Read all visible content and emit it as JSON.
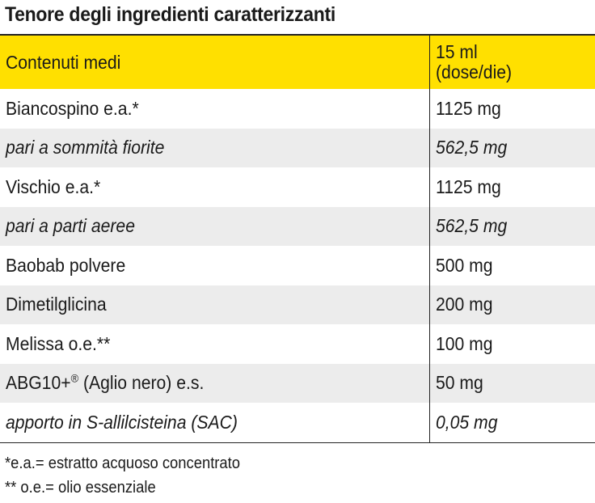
{
  "title": "Tenore degli ingredienti caratterizzanti",
  "header": {
    "col1": "Contenuti medi",
    "col2_line1": "15 ml",
    "col2_line2": "(dose/die)"
  },
  "rows": [
    {
      "name": "Biancospino e.a.*",
      "value": "1125 mg",
      "italic": false,
      "shaded": false
    },
    {
      "name": "pari a sommità fiorite",
      "value": "562,5 mg",
      "italic": true,
      "shaded": true
    },
    {
      "name": "Vischio e.a.*",
      "value": "1125 mg",
      "italic": false,
      "shaded": false
    },
    {
      "name": "pari a parti aeree",
      "value": "562,5 mg",
      "italic": true,
      "shaded": true
    },
    {
      "name": "Baobab polvere",
      "value": "500 mg",
      "italic": false,
      "shaded": false
    },
    {
      "name": "Dimetilglicina",
      "value": "200 mg",
      "italic": false,
      "shaded": true
    },
    {
      "name": "Melissa o.e.**",
      "value": "100 mg",
      "italic": false,
      "shaded": false
    },
    {
      "name_prefix": "ABG10+",
      "name_sup": "®",
      "name_suffix": " (Aglio nero) e.s.",
      "value": "50 mg",
      "italic": false,
      "shaded": true
    },
    {
      "name": "apporto in S-allilcisteina (SAC)",
      "value": "0,05 mg",
      "italic": true,
      "shaded": false
    }
  ],
  "footnotes": [
    "*e.a.= estratto acquoso concentrato",
    "** o.e.= olio essenziale"
  ],
  "colors": {
    "header_bg": "#ffe000",
    "shaded_row_bg": "#ececec"
  }
}
